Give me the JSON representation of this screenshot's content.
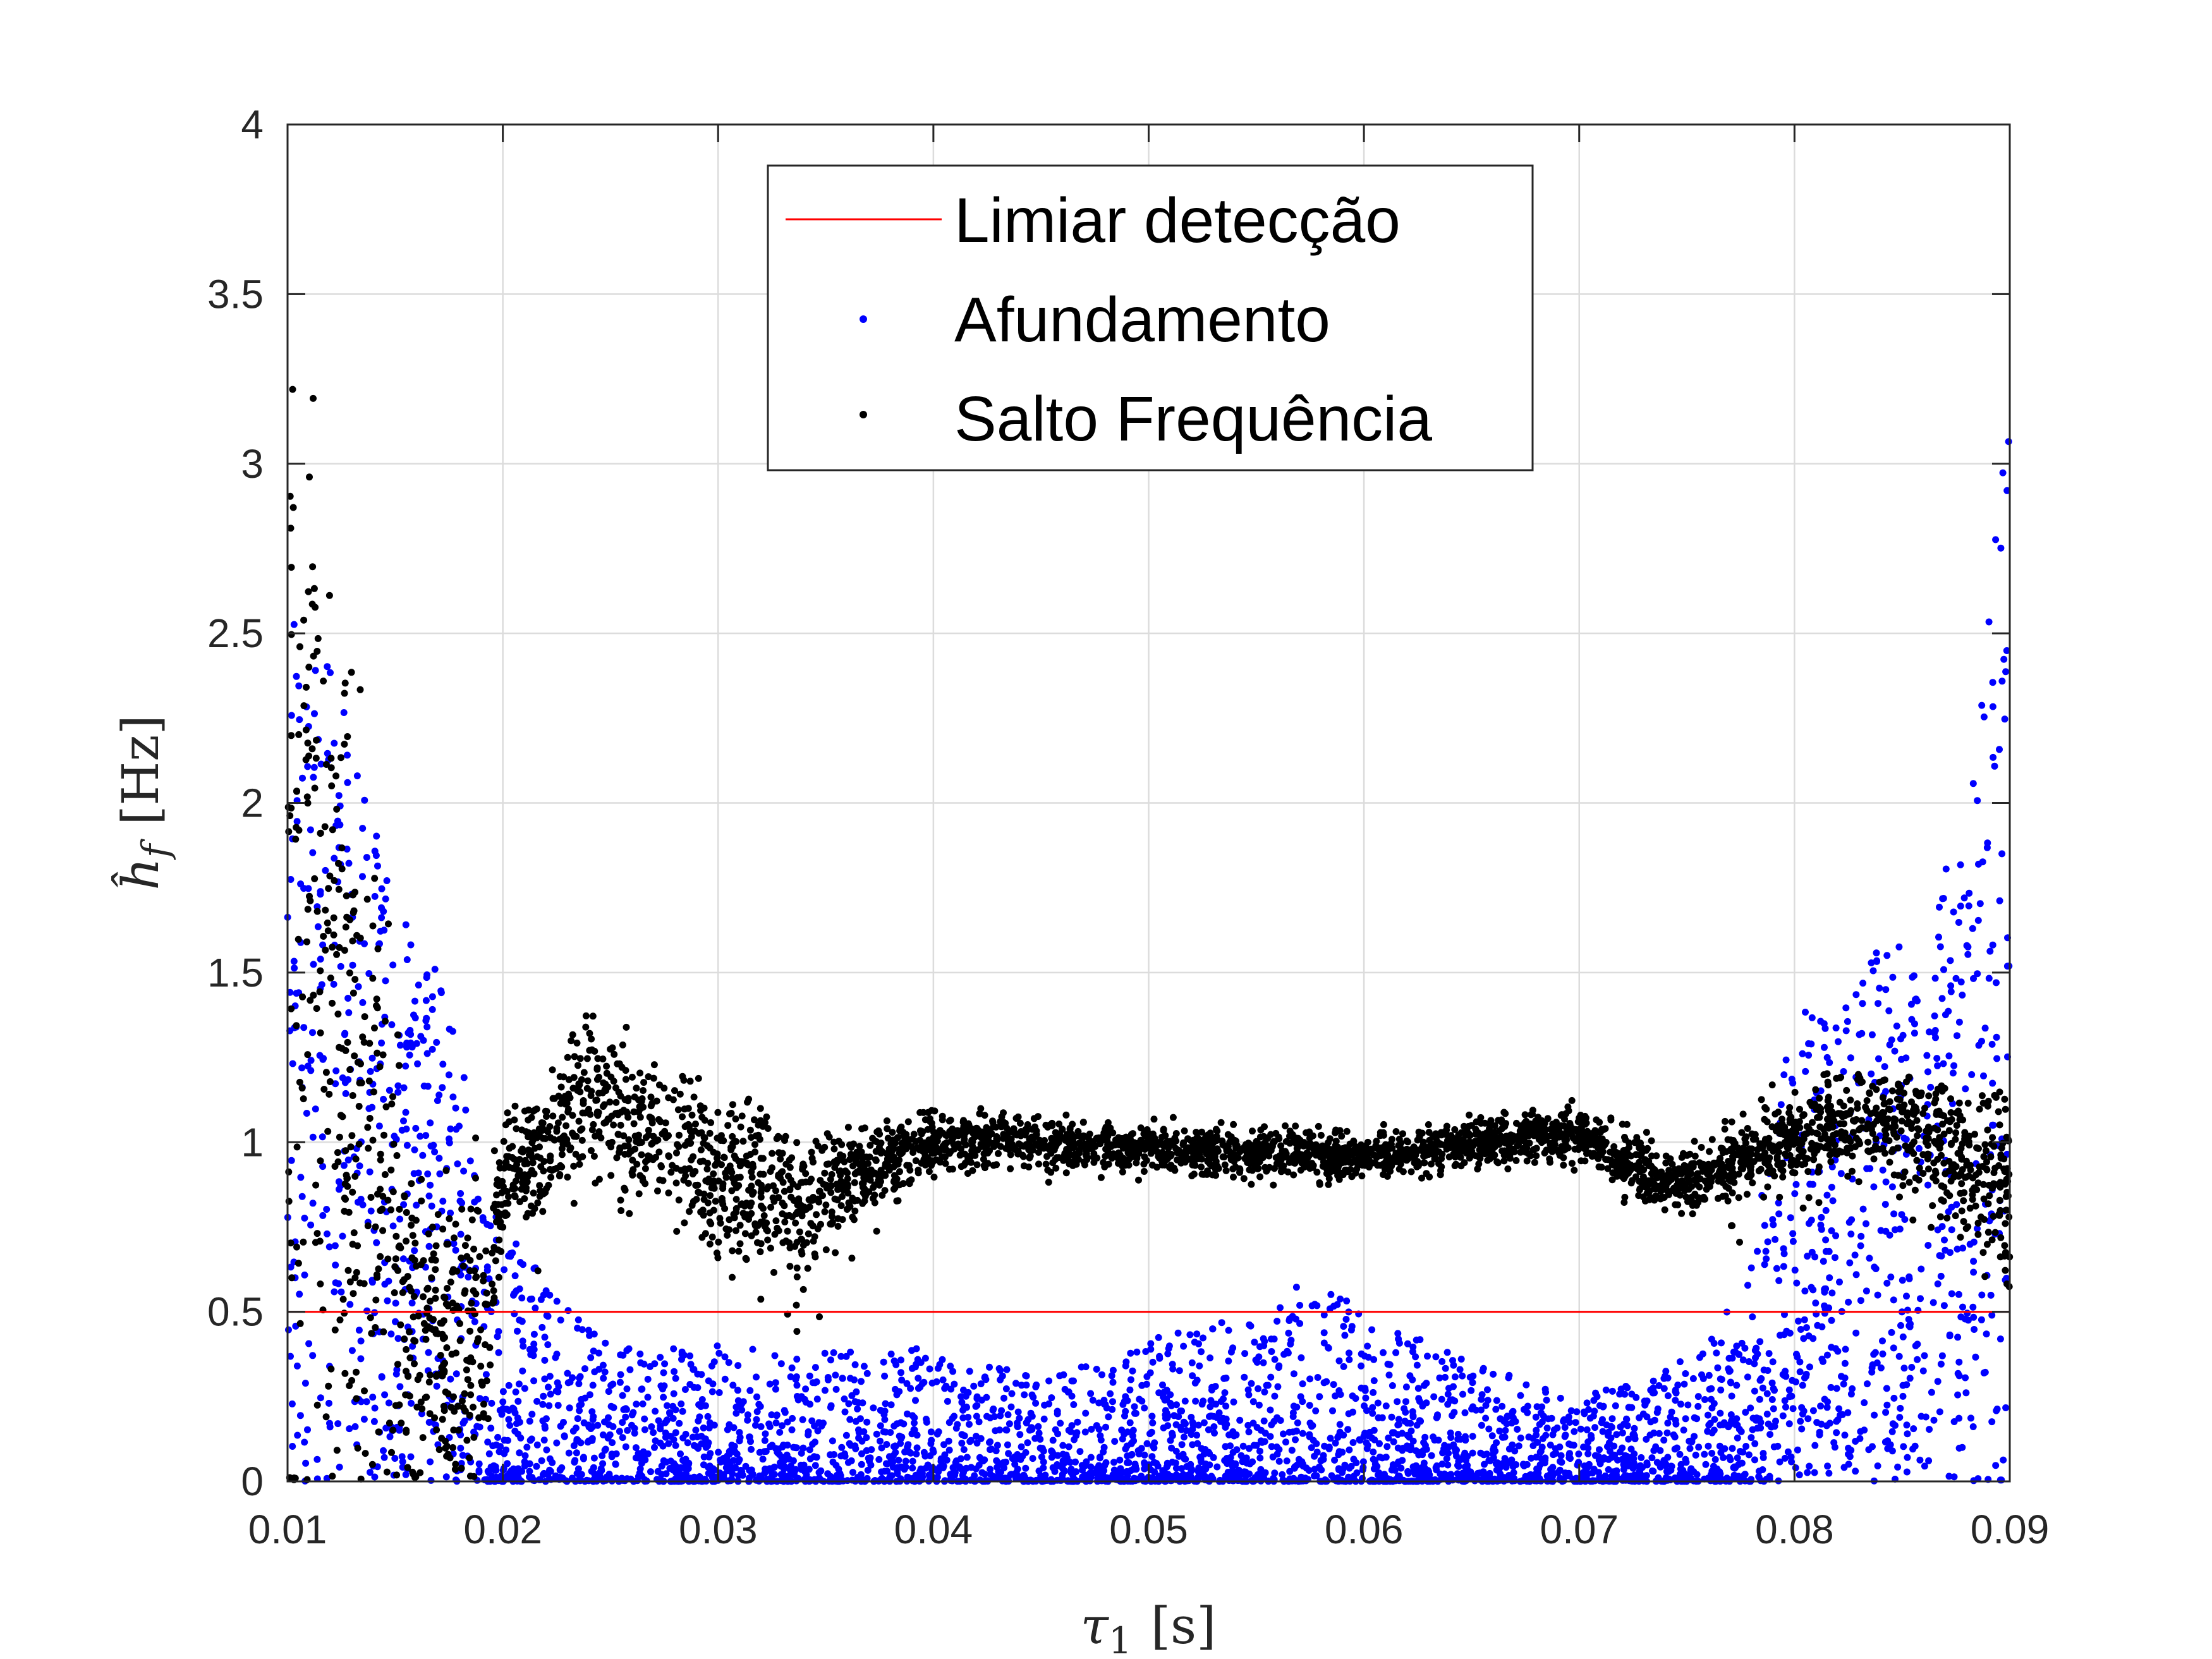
{
  "chart_data": {
    "type": "scatter",
    "xlabel": {
      "symbol": "τ",
      "sub": "1",
      "unit": "[s]"
    },
    "ylabel": {
      "symbol": "ĥ",
      "sub": "f",
      "unit": "[Hz]"
    },
    "xlim": [
      0.01,
      0.09
    ],
    "ylim": [
      0,
      4
    ],
    "xticks": [
      0.01,
      0.02,
      0.03,
      0.04,
      0.05,
      0.06,
      0.07,
      0.08,
      0.09
    ],
    "xtick_labels": [
      "0.01",
      "0.02",
      "0.03",
      "0.04",
      "0.05",
      "0.06",
      "0.07",
      "0.08",
      "0.09"
    ],
    "yticks": [
      0,
      0.5,
      1,
      1.5,
      2,
      2.5,
      3,
      3.5,
      4
    ],
    "ytick_labels": [
      "0",
      "0.5",
      "1",
      "1.5",
      "2",
      "2.5",
      "3",
      "3.5",
      "4"
    ],
    "grid": true,
    "legend_position": "top-center",
    "threshold": {
      "name": "Limiar detecção",
      "y": 0.5,
      "color": "#ff0000"
    },
    "series": [
      {
        "name": "Afundamento",
        "color": "#0000ff",
        "x_samples": [
          0.01,
          0.011,
          0.012,
          0.013,
          0.014,
          0.015,
          0.016,
          0.017,
          0.018,
          0.019,
          0.02,
          0.022,
          0.025,
          0.03,
          0.035,
          0.04,
          0.045,
          0.05,
          0.055,
          0.0575,
          0.06,
          0.065,
          0.07,
          0.073,
          0.076,
          0.078,
          0.08,
          0.082,
          0.084,
          0.086,
          0.088,
          0.089,
          0.09
        ],
        "y_band_low": [
          0.0,
          0.0,
          0.0,
          0.0,
          0.0,
          0.0,
          0.0,
          0.0,
          0.0,
          0.0,
          0.0,
          0.0,
          0.0,
          0.0,
          0.0,
          0.0,
          0.0,
          0.0,
          0.0,
          0.0,
          0.0,
          0.0,
          0.0,
          0.0,
          0.0,
          0.0,
          0.0,
          0.0,
          0.0,
          0.0,
          0.0,
          0.0,
          0.0
        ],
        "y_band_high": [
          2.6,
          2.6,
          2.4,
          2.2,
          2.0,
          1.7,
          1.6,
          1.5,
          1.3,
          0.9,
          0.75,
          0.6,
          0.4,
          0.4,
          0.38,
          0.4,
          0.3,
          0.42,
          0.5,
          0.6,
          0.5,
          0.35,
          0.25,
          0.3,
          0.4,
          0.7,
          1.4,
          1.35,
          1.6,
          1.6,
          2.0,
          2.6,
          3.2
        ]
      },
      {
        "name": "Salto Frequência",
        "color": "#000000",
        "x_samples": [
          0.01,
          0.011,
          0.012,
          0.013,
          0.014,
          0.015,
          0.016,
          0.017,
          0.018,
          0.019,
          0.02,
          0.022,
          0.024,
          0.026,
          0.028,
          0.03,
          0.032,
          0.034,
          0.036,
          0.04,
          0.045,
          0.05,
          0.055,
          0.06,
          0.065,
          0.07,
          0.072,
          0.074,
          0.076,
          0.08,
          0.082,
          0.085,
          0.088,
          0.09
        ],
        "y_center": [
          1.7,
          1.7,
          1.5,
          1.2,
          0.9,
          0.7,
          0.5,
          0.4,
          0.4,
          0.5,
          0.88,
          0.98,
          1.15,
          1.05,
          1.0,
          0.9,
          0.85,
          0.8,
          0.9,
          1.0,
          1.0,
          0.98,
          0.97,
          0.96,
          1.0,
          1.02,
          0.95,
          0.88,
          0.9,
          1.0,
          1.05,
          1.05,
          0.95,
          0.85
        ],
        "y_spread": [
          1.8,
          1.4,
          1.2,
          1.0,
          0.8,
          0.7,
          0.5,
          0.4,
          0.4,
          0.4,
          0.14,
          0.16,
          0.2,
          0.2,
          0.18,
          0.22,
          0.24,
          0.22,
          0.14,
          0.08,
          0.07,
          0.06,
          0.06,
          0.06,
          0.06,
          0.07,
          0.08,
          0.1,
          0.1,
          0.12,
          0.14,
          0.16,
          0.22,
          0.28
        ],
        "y_max": [
          3.5,
          3.4,
          2.8,
          2.7,
          2.0,
          1.9,
          1.7,
          1.5,
          1.3,
          1.0,
          1.1,
          1.2,
          1.4,
          1.35,
          1.3,
          1.2,
          1.1,
          1.0,
          1.05,
          1.1,
          1.1,
          1.08,
          1.08,
          1.08,
          1.12,
          1.15,
          1.08,
          1.0,
          1.02,
          1.25,
          1.2,
          1.2,
          1.15,
          1.15
        ]
      }
    ]
  }
}
